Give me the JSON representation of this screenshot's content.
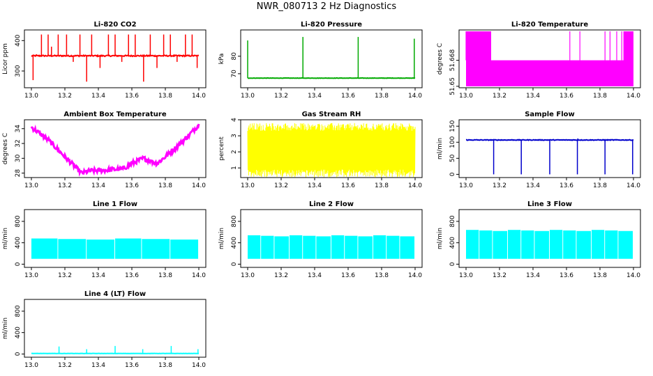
{
  "title": "NWR_080713  2 Hz Diagnostics",
  "chart_data": [
    {
      "id": "co2",
      "type": "line",
      "title": "Li-820 CO2",
      "ylabel": "Licor ppm",
      "color": "#ff0000",
      "xlim": [
        13.0,
        14.0
      ],
      "ylim": [
        245,
        435
      ],
      "yticks": [
        300,
        400
      ],
      "xticks": [
        13.0,
        13.2,
        13.4,
        13.6,
        13.8,
        14.0
      ],
      "xticklabels": [
        "13.0",
        "13.2",
        "13.4",
        "13.6",
        "13.8",
        "14.0"
      ],
      "base": 350,
      "noise": 4,
      "pattern": "spikes",
      "spikes": [
        [
          13.01,
          270
        ],
        [
          13.03,
          355
        ],
        [
          13.06,
          420
        ],
        [
          13.1,
          420
        ],
        [
          13.12,
          380
        ],
        [
          13.16,
          420
        ],
        [
          13.21,
          420
        ],
        [
          13.25,
          330
        ],
        [
          13.29,
          420
        ],
        [
          13.33,
          265
        ],
        [
          13.36,
          420
        ],
        [
          13.41,
          310
        ],
        [
          13.46,
          420
        ],
        [
          13.5,
          420
        ],
        [
          13.54,
          330
        ],
        [
          13.58,
          420
        ],
        [
          13.62,
          420
        ],
        [
          13.67,
          265
        ],
        [
          13.71,
          420
        ],
        [
          13.75,
          310
        ],
        [
          13.79,
          420
        ],
        [
          13.83,
          420
        ],
        [
          13.87,
          330
        ],
        [
          13.92,
          420
        ],
        [
          13.96,
          420
        ],
        [
          13.99,
          310
        ]
      ]
    },
    {
      "id": "pressure",
      "type": "line",
      "title": "Li-820 Pressure",
      "ylabel": "kPa",
      "color": "#00aa00",
      "xlim": [
        13.0,
        14.0
      ],
      "ylim": [
        62,
        95
      ],
      "yticks": [
        70,
        80
      ],
      "xticks": [
        13.0,
        13.2,
        13.4,
        13.6,
        13.8,
        14.0
      ],
      "xticklabels": [
        "13.0",
        "13.2",
        "13.4",
        "13.6",
        "13.8",
        "14.0"
      ],
      "base": 67.5,
      "noise": 0.2,
      "pattern": "spikes",
      "spikes": [
        [
          13.0,
          89
        ],
        [
          13.33,
          91
        ],
        [
          13.66,
          91
        ],
        [
          13.995,
          90
        ]
      ]
    },
    {
      "id": "temp",
      "type": "line",
      "title": "Li-820 Temperature",
      "ylabel": "degrees C",
      "color": "#ff00ff",
      "xlim": [
        13.0,
        14.0
      ],
      "ylim": [
        51.649,
        51.689
      ],
      "yticks": [
        51.65,
        51.668
      ],
      "yticklabels": [
        "51.65",
        "51.668"
      ],
      "xticks": [
        13.0,
        13.2,
        13.4,
        13.6,
        13.8,
        14.0
      ],
      "xticklabels": [
        "13.0",
        "13.2",
        "13.4",
        "13.6",
        "13.8",
        "14.0"
      ],
      "base": 51.668,
      "low": 51.65,
      "pattern": "band",
      "spikes": [
        [
          13.0,
          51.69
        ],
        [
          13.05,
          51.69
        ],
        [
          13.1,
          51.69
        ],
        [
          13.14,
          51.69
        ],
        [
          13.62,
          51.69
        ],
        [
          13.68,
          51.69
        ],
        [
          13.83,
          51.69
        ],
        [
          13.86,
          51.69
        ],
        [
          13.9,
          51.69
        ],
        [
          13.93,
          51.69
        ],
        [
          13.96,
          51.69
        ],
        [
          13.99,
          51.69
        ]
      ]
    },
    {
      "id": "ambient",
      "type": "line",
      "title": "Ambient Box Temperature",
      "ylabel": "degrees C",
      "color": "#ff00ff",
      "xlim": [
        13.0,
        14.0
      ],
      "ylim": [
        27.4,
        35.2
      ],
      "yticks": [
        28,
        30,
        32,
        34
      ],
      "xticks": [
        13.0,
        13.2,
        13.4,
        13.6,
        13.8,
        14.0
      ],
      "xticklabels": [
        "13.0",
        "13.2",
        "13.4",
        "13.6",
        "13.8",
        "14.0"
      ],
      "noise": 0.6,
      "pattern": "curve",
      "curve": [
        [
          13.0,
          34.2
        ],
        [
          13.1,
          32.5
        ],
        [
          13.2,
          30.2
        ],
        [
          13.3,
          28.0
        ],
        [
          13.35,
          28.3
        ],
        [
          13.45,
          28.4
        ],
        [
          13.55,
          28.6
        ],
        [
          13.6,
          29.3
        ],
        [
          13.67,
          30.0
        ],
        [
          13.75,
          29.3
        ],
        [
          13.8,
          30.2
        ],
        [
          13.9,
          32.2
        ],
        [
          14.0,
          34.5
        ]
      ]
    },
    {
      "id": "rh",
      "type": "line",
      "title": "Gas Stream RH",
      "ylabel": "percent",
      "color": "#ffff00",
      "xlim": [
        13.0,
        14.0
      ],
      "ylim": [
        0.4,
        4.0
      ],
      "yticks": [
        1,
        2,
        3,
        4
      ],
      "xticks": [
        13.0,
        13.2,
        13.4,
        13.6,
        13.8,
        14.0
      ],
      "xticklabels": [
        "13.0",
        "13.2",
        "13.4",
        "13.6",
        "13.8",
        "14.0"
      ],
      "low": 0.9,
      "high": 3.3,
      "pattern": "noiseband"
    },
    {
      "id": "sample",
      "type": "line",
      "title": "Sample Flow",
      "ylabel": "ml/min",
      "color": "#0000cc",
      "xlim": [
        13.0,
        14.0
      ],
      "ylim": [
        -10,
        170
      ],
      "yticks": [
        0,
        50,
        100,
        150
      ],
      "xticks": [
        13.0,
        13.2,
        13.4,
        13.6,
        13.8,
        14.0
      ],
      "xticklabels": [
        "13.0",
        "13.2",
        "13.4",
        "13.6",
        "13.8",
        "14.0"
      ],
      "base": 107,
      "noise": 2,
      "pattern": "spikes",
      "spikes": [
        [
          13.165,
          0
        ],
        [
          13.33,
          0
        ],
        [
          13.5,
          0
        ],
        [
          13.665,
          0
        ],
        [
          13.668,
          112
        ],
        [
          13.83,
          0
        ],
        [
          13.995,
          0
        ]
      ]
    },
    {
      "id": "line1",
      "type": "line",
      "title": "Line 1 Flow",
      "ylabel": "ml/min",
      "color": "#00ffff",
      "xlim": [
        13.0,
        14.0
      ],
      "ylim": [
        -60,
        1020
      ],
      "yticks": [
        0,
        400,
        800
      ],
      "xticks": [
        13.0,
        13.2,
        13.4,
        13.6,
        13.8,
        14.0
      ],
      "xticklabels": [
        "13.0",
        "13.2",
        "13.4",
        "13.6",
        "13.8",
        "14.0"
      ],
      "low": 100,
      "high": 480,
      "pattern": "block",
      "gaps": [
        13.16,
        13.33,
        13.5,
        13.66,
        13.83,
        14.0
      ]
    },
    {
      "id": "line2",
      "type": "line",
      "title": "Line 2 Flow",
      "ylabel": "ml/min",
      "color": "#00ffff",
      "xlim": [
        13.0,
        14.0
      ],
      "ylim": [
        -60,
        1020
      ],
      "yticks": [
        0,
        400,
        800
      ],
      "xticks": [
        13.0,
        13.2,
        13.4,
        13.6,
        13.8,
        14.0
      ],
      "xticklabels": [
        "13.0",
        "13.2",
        "13.4",
        "13.6",
        "13.8",
        "14.0"
      ],
      "low": 100,
      "high": 540,
      "pattern": "block",
      "gaps": [
        13.08,
        13.16,
        13.25,
        13.33,
        13.41,
        13.5,
        13.58,
        13.66,
        13.75,
        13.83,
        13.91,
        14.0
      ]
    },
    {
      "id": "line3",
      "type": "line",
      "title": "Line 3 Flow",
      "ylabel": "ml/min",
      "color": "#00ffff",
      "xlim": [
        13.0,
        14.0
      ],
      "ylim": [
        -60,
        1020
      ],
      "yticks": [
        0,
        400,
        800
      ],
      "xticks": [
        13.0,
        13.2,
        13.4,
        13.6,
        13.8,
        14.0
      ],
      "xticklabels": [
        "13.0",
        "13.2",
        "13.4",
        "13.6",
        "13.8",
        "14.0"
      ],
      "low": 100,
      "high": 640,
      "pattern": "block",
      "gaps": [
        13.08,
        13.16,
        13.25,
        13.33,
        13.41,
        13.5,
        13.58,
        13.66,
        13.75,
        13.83,
        13.91,
        14.0
      ]
    },
    {
      "id": "line4",
      "type": "line",
      "title": "Line 4 (LT) Flow",
      "ylabel": "ml/min",
      "color": "#00ffff",
      "xlim": [
        13.0,
        14.0
      ],
      "ylim": [
        -60,
        1020
      ],
      "yticks": [
        0,
        400,
        800
      ],
      "xticks": [
        13.0,
        13.2,
        13.4,
        13.6,
        13.8,
        14.0
      ],
      "xticklabels": [
        "13.0",
        "13.2",
        "13.4",
        "13.6",
        "13.8",
        "14.0"
      ],
      "base": 10,
      "noise": 3,
      "pattern": "spikes",
      "spikes": [
        [
          13.165,
          140
        ],
        [
          13.33,
          90
        ],
        [
          13.5,
          150
        ],
        [
          13.665,
          90
        ],
        [
          13.835,
          150
        ],
        [
          13.995,
          90
        ]
      ]
    }
  ]
}
